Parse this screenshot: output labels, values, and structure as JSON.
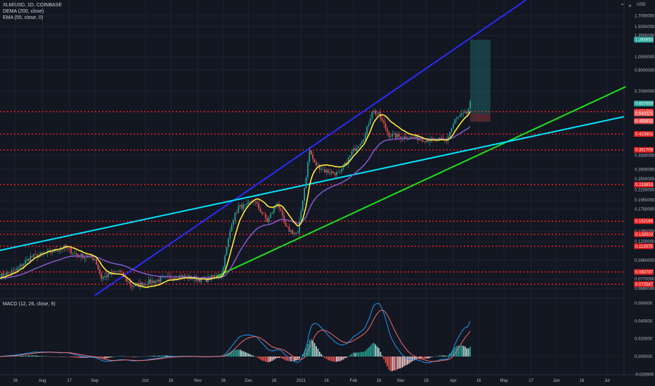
{
  "header": {
    "symbol_line": "XLM/USD, 1D, COINBASE",
    "dema_line": "DEMA (200, close)",
    "ema_line": "EMA (55, close, 0)",
    "macd_line": "MACD (12, 26, close, 9)",
    "currency": "USD"
  },
  "colors": {
    "background": "#131722",
    "grid": "#1f2230",
    "up": "#26a69a",
    "down": "#ef5350",
    "dema": "#ffeb3b",
    "ema": "#7e57c2",
    "resistance": "#2a2aff",
    "support": "#1be21b",
    "long_trend": "#00e5ff",
    "level": "#ff1f1f",
    "macd": "#2196f3",
    "signal": "#ef6c6c"
  },
  "icons": {
    "collapse": "chevron-up-icon",
    "close": "close-icon"
  },
  "chart_data": {
    "type": "candlestick",
    "symbol": "XLM/USD",
    "interval": "1D",
    "exchange": "COINBASE",
    "y_scale": "log",
    "ylim": [
      0.062,
      2.05
    ],
    "xlim": [
      "2020-07-07",
      "2021-07-11"
    ],
    "price_ticks": [
      "1.7000000",
      "1.5000000",
      "1.3500000",
      "1.0500000",
      "0.9000000",
      "0.7000000",
      "0.3300000",
      "0.2800000",
      "0.2500000",
      "0.2200000",
      "0.1950000",
      "0.1750000",
      "0.1350000",
      "0.1200000",
      "0.0960000",
      "0.0770000",
      "0.0690000"
    ],
    "x_ticks": [
      "16",
      "Aug",
      "17",
      "Sep",
      "Oct",
      "16",
      "Nov",
      "16",
      "Dec",
      "16",
      "2021",
      "16",
      "Feb",
      "16",
      "Mar",
      "16",
      "Apr",
      "16",
      "May",
      "17",
      "Jun",
      "16",
      "Jul"
    ],
    "x_tick_dates": [
      "2020-07-16",
      "2020-08-01",
      "2020-08-17",
      "2020-09-01",
      "2020-10-01",
      "2020-10-16",
      "2020-11-01",
      "2020-11-16",
      "2020-12-01",
      "2020-12-16",
      "2021-01-01",
      "2021-01-16",
      "2021-02-01",
      "2021-02-16",
      "2021-03-01",
      "2021-03-16",
      "2021-04-01",
      "2021-04-16",
      "2021-05-01",
      "2021-05-17",
      "2021-06-01",
      "2021-06-16",
      "2021-07-01"
    ],
    "levels": [
      {
        "value": 0.551799,
        "label": "0.551799"
      },
      {
        "value": 0.423901,
        "label": "0.423901"
      },
      {
        "value": 0.351709,
        "label": "0.351709"
      },
      {
        "value": 0.233853,
        "label": "0.233853"
      },
      {
        "value": 0.152165,
        "label": "0.152165"
      },
      {
        "value": 0.130503,
        "label": "0.130503"
      },
      {
        "value": 0.113375,
        "label": "0.113375"
      },
      {
        "value": 0.083787,
        "label": "0.083787"
      },
      {
        "value": 0.072587,
        "label": "0.072587"
      }
    ],
    "price_tags": [
      {
        "value": 1.28495,
        "label": "1.284950",
        "color": "#26a69a"
      },
      {
        "value": 0.607,
        "label": "0.607000",
        "color": "#26a69a"
      },
      {
        "value": 0.540221,
        "label": "0.540221",
        "color": "#ef5350"
      },
      {
        "value": 0.493831,
        "label": "0.493831",
        "color": "#ef5350"
      }
    ],
    "trend_lines": [
      {
        "name": "resistance",
        "color": "#2a2aff",
        "from": [
          "2020-09-01",
          0.0635
        ],
        "to": [
          "2021-05-14",
          2.05
        ]
      },
      {
        "name": "support",
        "color": "#1be21b",
        "from": [
          "2020-11-12",
          0.0795
        ],
        "to": [
          "2021-07-12",
          0.74
        ]
      },
      {
        "name": "long-trend",
        "color": "#00e5ff",
        "from": [
          "2020-07-07",
          0.108
        ],
        "to": [
          "2021-07-11",
          0.52
        ]
      }
    ],
    "position": {
      "entry_date": "2021-04-11",
      "exit_date": "2021-04-23",
      "entry": 0.54,
      "target": 1.28495,
      "stop": 0.49
    }
  }
}
